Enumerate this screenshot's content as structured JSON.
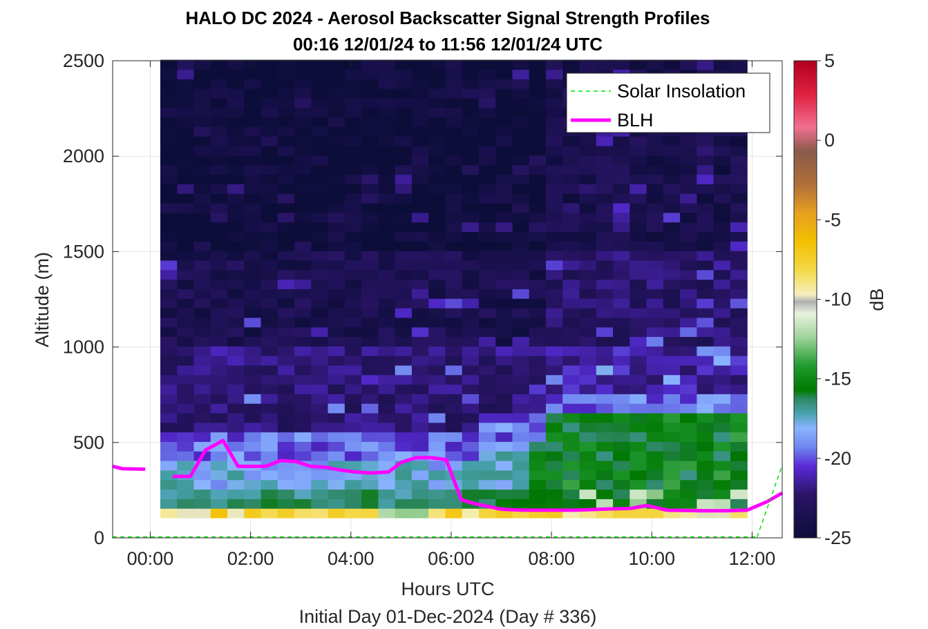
{
  "chart_data": {
    "type": "heatmap",
    "title": "HALO DC 2024 - Aerosol Backscatter Signal Strength Profiles",
    "subtitle": "00:16 12/01/24 to 11:56 12/01/24  UTC",
    "xlabel": "Hours UTC",
    "ylabel": "Altitude (m)",
    "footer": "Initial Day 01-Dec-2024 (Day # 336)",
    "xlim": [
      -0.75,
      12.6
    ],
    "ylim": [
      0,
      2500
    ],
    "x_ticks": [
      0,
      2,
      4,
      6,
      8,
      10,
      12
    ],
    "x_tick_labels": [
      "00:00",
      "02:00",
      "04:00",
      "06:00",
      "08:00",
      "10:00",
      "12:00"
    ],
    "y_ticks": [
      0,
      500,
      1000,
      1500,
      2000,
      2500
    ],
    "y_tick_labels": [
      "0",
      "500",
      "1000",
      "1500",
      "2000",
      "2500"
    ],
    "grid": true,
    "colorbar": {
      "label": "dB",
      "range": [
        -25,
        5
      ],
      "ticks": [
        5,
        0,
        -5,
        -10,
        -15,
        -20,
        -25
      ],
      "tick_labels": [
        "5",
        "0",
        "-5",
        "-10",
        "-15",
        "-20",
        "-25"
      ]
    },
    "heatmap": {
      "x_start_hours": 0.2,
      "x_end_hours": 11.9,
      "n_columns": 35,
      "y_bottom_m": 105,
      "y_top_m": 2500,
      "bin_height_m": 50,
      "value_unit": "dB",
      "description_of_structure": "near-surface yellow/orange layer (about -5 to -8 dB) below ~150 m; green/cyan aerosol layer (about -14 to -19 dB) up to ~400 m before 07:00 deepening to ~650 m after 08:00; purple/navy (about -21 to -25 dB) aloft"
    },
    "legend": {
      "position": "top-right",
      "entries": [
        {
          "label": "Solar Insolation",
          "style": "dashed",
          "color": "#00dd00"
        },
        {
          "label": "BLH",
          "style": "solid",
          "color": "#ff00ff"
        }
      ]
    },
    "series": [
      {
        "name": "BLH",
        "color": "#ff00ff",
        "segments": [
          {
            "x": [
              -0.75,
              -0.55,
              -0.1
            ],
            "y": [
              375,
              362,
              360
            ]
          },
          {
            "x": [
              0.45,
              0.8,
              1.1,
              1.45,
              1.75,
              2.0,
              2.3,
              2.6,
              2.9,
              3.2,
              3.5,
              3.8,
              4.1,
              4.4,
              4.75,
              5.0,
              5.3,
              5.6,
              5.9,
              6.2,
              6.45,
              7.0,
              7.4,
              8.0,
              8.5,
              9.0,
              9.6,
              9.9,
              10.3,
              11.0,
              11.5,
              11.9,
              12.3,
              12.6
            ],
            "y": [
              322,
              322,
              460,
              510,
              375,
              375,
              375,
              405,
              400,
              375,
              370,
              355,
              345,
              340,
              345,
              395,
              420,
              420,
              410,
              200,
              180,
              150,
              145,
              145,
              145,
              150,
              155,
              170,
              145,
              142,
              142,
              145,
              190,
              235
            ]
          }
        ]
      },
      {
        "name": "Solar Insolation",
        "color": "#00dd00",
        "segments": [
          {
            "x": [
              -0.75,
              12.1
            ],
            "y": [
              5,
              5
            ]
          },
          {
            "x": [
              12.1,
              12.6
            ],
            "y": [
              5,
              380
            ]
          }
        ]
      }
    ]
  }
}
